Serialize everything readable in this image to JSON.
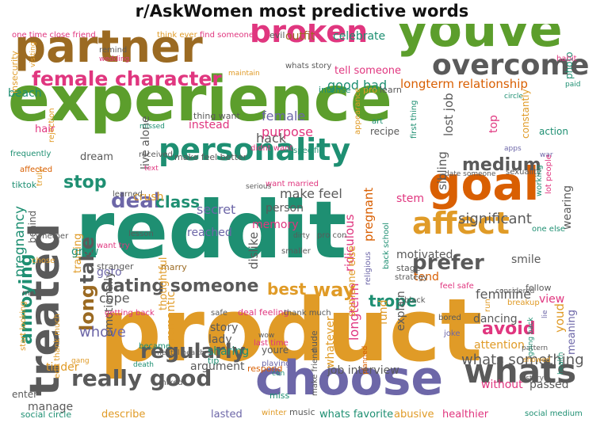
{
  "title": "r/AskWomen most predictive words",
  "palette": {
    "green": "#5c9e2c",
    "orange": "#e09b27",
    "purple": "#6d67a8",
    "teal": "#1e8f72",
    "brown": "#9b6a22",
    "magenta": "#e0367f",
    "gray": "#5a5a5a",
    "red": "#d95f02"
  },
  "words": [
    {
      "text": "experience",
      "color": "green"
    },
    {
      "text": "product",
      "color": "orange"
    },
    {
      "text": "reddit",
      "color": "teal"
    },
    {
      "text": "youve",
      "color": "green"
    },
    {
      "text": "partner",
      "color": "brown"
    },
    {
      "text": "choose",
      "color": "purple"
    },
    {
      "text": "treated",
      "color": "gray"
    },
    {
      "text": "goal",
      "color": "red"
    },
    {
      "text": "broken",
      "color": "magenta"
    },
    {
      "text": "overcome",
      "color": "gray"
    },
    {
      "text": "personality",
      "color": "teal"
    },
    {
      "text": "affect",
      "color": "orange"
    },
    {
      "text": "whats",
      "color": "gray"
    },
    {
      "text": "female character",
      "color": "magenta"
    },
    {
      "text": "really good",
      "color": "gray"
    },
    {
      "text": "take",
      "color": "gray"
    },
    {
      "text": "long",
      "color": "brown"
    },
    {
      "text": "annoying",
      "color": "teal"
    },
    {
      "text": "regularly",
      "color": "gray"
    },
    {
      "text": "prefer",
      "color": "gray"
    },
    {
      "text": "dating someone",
      "color": "gray"
    },
    {
      "text": "deal",
      "color": "purple"
    },
    {
      "text": "stop",
      "color": "teal"
    },
    {
      "text": "medium",
      "color": "gray"
    },
    {
      "text": "avoid",
      "color": "magenta"
    },
    {
      "text": "best",
      "color": "orange"
    },
    {
      "text": "way",
      "color": "orange"
    },
    {
      "text": "whats something",
      "color": "gray"
    },
    {
      "text": "class",
      "color": "teal"
    },
    {
      "text": "significant",
      "color": "gray"
    },
    {
      "text": "good bad",
      "color": "teal"
    },
    {
      "text": "longterm relationship",
      "color": "red"
    },
    {
      "text": "trope",
      "color": "teal"
    },
    {
      "text": "hack",
      "color": "gray"
    },
    {
      "text": "goto",
      "color": "purple"
    },
    {
      "text": "cope",
      "color": "gray"
    },
    {
      "text": "pregnancy",
      "color": "teal"
    },
    {
      "text": "make feel",
      "color": "gray"
    },
    {
      "text": "secret",
      "color": "purple"
    },
    {
      "text": "female",
      "color": "purple"
    },
    {
      "text": "purpose",
      "color": "magenta"
    },
    {
      "text": "instead",
      "color": "magenta"
    },
    {
      "text": "sibling",
      "color": "gray"
    },
    {
      "text": "wearing",
      "color": "gray"
    },
    {
      "text": "lost job",
      "color": "gray"
    },
    {
      "text": "top",
      "color": "magenta"
    },
    {
      "text": "crush",
      "color": "orange"
    },
    {
      "text": "live alone",
      "color": "gray"
    },
    {
      "text": "stem",
      "color": "magenta"
    },
    {
      "text": "person",
      "color": "gray"
    },
    {
      "text": "memory",
      "color": "magenta"
    },
    {
      "text": "pregnant",
      "color": "red"
    },
    {
      "text": "motivated",
      "color": "gray"
    },
    {
      "text": "smile",
      "color": "gray"
    },
    {
      "text": "tend",
      "color": "red"
    },
    {
      "text": "view",
      "color": "magenta"
    },
    {
      "text": "feminine",
      "color": "gray"
    },
    {
      "text": "explain",
      "color": "gray"
    },
    {
      "text": "fund",
      "color": "orange"
    },
    {
      "text": "longterm",
      "color": "magenta"
    },
    {
      "text": "ridiculous",
      "color": "magenta"
    },
    {
      "text": "dislike",
      "color": "gray"
    },
    {
      "text": "romantic",
      "color": "orange"
    },
    {
      "text": "whove",
      "color": "purple"
    },
    {
      "text": "emotionally",
      "color": "gray"
    },
    {
      "text": "sharing",
      "color": "teal"
    },
    {
      "text": "argument",
      "color": "gray"
    },
    {
      "text": "lady",
      "color": "gray"
    },
    {
      "text": "story",
      "color": "gray"
    },
    {
      "text": "job interview",
      "color": "gray"
    },
    {
      "text": "attention",
      "color": "orange"
    },
    {
      "text": "dancing",
      "color": "gray"
    },
    {
      "text": "meaning",
      "color": "purple"
    },
    {
      "text": "youd",
      "color": "orange"
    },
    {
      "text": "without",
      "color": "magenta"
    },
    {
      "text": "passed",
      "color": "gray"
    },
    {
      "text": "tinder",
      "color": "orange"
    },
    {
      "text": "manage",
      "color": "gray"
    },
    {
      "text": "describe",
      "color": "orange"
    },
    {
      "text": "lasted",
      "color": "purple"
    },
    {
      "text": "whats favorite",
      "color": "teal"
    },
    {
      "text": "abusive",
      "color": "orange"
    },
    {
      "text": "healthier",
      "color": "magenta"
    },
    {
      "text": "social circle",
      "color": "teal"
    },
    {
      "text": "social medium",
      "color": "teal"
    },
    {
      "text": "enter",
      "color": "gray"
    },
    {
      "text": "tip",
      "color": "teal"
    },
    {
      "text": "respond",
      "color": "red"
    },
    {
      "text": "marry",
      "color": "brown"
    },
    {
      "text": "training",
      "color": "orange"
    },
    {
      "text": "grew",
      "color": "teal"
    },
    {
      "text": "behind",
      "color": "gray"
    },
    {
      "text": "dream",
      "color": "gray"
    },
    {
      "text": "hair",
      "color": "magenta"
    },
    {
      "text": "beach",
      "color": "teal"
    },
    {
      "text": "insecurity",
      "color": "orange"
    },
    {
      "text": "one time close friend",
      "color": "magenta"
    },
    {
      "text": "think ever",
      "color": "orange"
    },
    {
      "text": "find someone",
      "color": "magenta"
    },
    {
      "text": "evil",
      "color": "gray"
    },
    {
      "text": "outfit",
      "color": "brown"
    },
    {
      "text": "celebrate",
      "color": "teal"
    },
    {
      "text": "remind",
      "color": "gray"
    },
    {
      "text": "wedding",
      "color": "magenta"
    },
    {
      "text": "tell someone",
      "color": "magenta"
    },
    {
      "text": "whats story",
      "color": "gray"
    },
    {
      "text": "maintain",
      "color": "orange"
    },
    {
      "text": "intense",
      "color": "teal"
    },
    {
      "text": "pro",
      "color": "orange"
    },
    {
      "text": "learn",
      "color": "gray"
    },
    {
      "text": "photo",
      "color": "teal"
    },
    {
      "text": "habit",
      "color": "magenta"
    },
    {
      "text": "paid",
      "color": "teal"
    },
    {
      "text": "circle",
      "color": "teal"
    },
    {
      "text": "action",
      "color": "teal"
    },
    {
      "text": "constantly",
      "color": "orange"
    },
    {
      "text": "war",
      "color": "purple"
    },
    {
      "text": "apps",
      "color": "purple"
    },
    {
      "text": "rejection",
      "color": "orange"
    },
    {
      "text": "visiting",
      "color": "orange"
    },
    {
      "text": "missed",
      "color": "teal"
    },
    {
      "text": "thing want",
      "color": "gray"
    },
    {
      "text": "didnt want",
      "color": "magenta"
    },
    {
      "text": "art",
      "color": "teal"
    },
    {
      "text": "recipe",
      "color": "gray"
    },
    {
      "text": "appearance",
      "color": "orange"
    },
    {
      "text": "first thing",
      "color": "teal"
    },
    {
      "text": "frequently",
      "color": "teal"
    },
    {
      "text": "received",
      "color": "gray"
    },
    {
      "text": "make feel better",
      "color": "gray"
    },
    {
      "text": "specific",
      "color": "teal"
    },
    {
      "text": "sexuality",
      "color": "gray"
    },
    {
      "text": "date someone",
      "color": "gray"
    },
    {
      "text": "working",
      "color": "teal"
    },
    {
      "text": "lot people",
      "color": "magenta"
    },
    {
      "text": "one else",
      "color": "teal"
    },
    {
      "text": "truly",
      "color": "orange"
    },
    {
      "text": "affected",
      "color": "red"
    },
    {
      "text": "text",
      "color": "magenta"
    },
    {
      "text": "tiktok",
      "color": "teal"
    },
    {
      "text": "learned",
      "color": "gray"
    },
    {
      "text": "want married",
      "color": "magenta"
    },
    {
      "text": "serious",
      "color": "gray"
    },
    {
      "text": "reached",
      "color": "purple"
    },
    {
      "text": "lesson",
      "color": "gray"
    },
    {
      "text": "dirty",
      "color": "gray"
    },
    {
      "text": "pro con",
      "color": "gray"
    },
    {
      "text": "smaller",
      "color": "gray"
    },
    {
      "text": "someone else",
      "color": "orange"
    },
    {
      "text": "religious",
      "color": "purple"
    },
    {
      "text": "back school",
      "color": "teal"
    },
    {
      "text": "strategy",
      "color": "gray"
    },
    {
      "text": "stage",
      "color": "gray"
    },
    {
      "text": "feel safe",
      "color": "magenta"
    },
    {
      "text": "considered",
      "color": "gray"
    },
    {
      "text": "fellow",
      "color": "gray"
    },
    {
      "text": "want try",
      "color": "magenta"
    },
    {
      "text": "stranger",
      "color": "gray"
    },
    {
      "text": "thoughtful",
      "color": "orange"
    },
    {
      "text": "getting back",
      "color": "magenta"
    },
    {
      "text": "safe",
      "color": "gray"
    },
    {
      "text": "deal feeling",
      "color": "magenta"
    },
    {
      "text": "thank much",
      "color": "gray"
    },
    {
      "text": "breakup",
      "color": "orange"
    },
    {
      "text": "black",
      "color": "gray"
    },
    {
      "text": "bored",
      "color": "gray"
    },
    {
      "text": "joke",
      "color": "purple"
    },
    {
      "text": "run",
      "color": "orange"
    },
    {
      "text": "lie",
      "color": "purple"
    },
    {
      "text": "chose",
      "color": "orange"
    },
    {
      "text": "mother",
      "color": "gray"
    },
    {
      "text": "whether",
      "color": "gray"
    },
    {
      "text": "start looking",
      "color": "orange"
    },
    {
      "text": "became",
      "color": "teal"
    },
    {
      "text": "mental health",
      "color": "gray"
    },
    {
      "text": "death",
      "color": "teal"
    },
    {
      "text": "last time",
      "color": "magenta"
    },
    {
      "text": "wow",
      "color": "gray"
    },
    {
      "text": "youre",
      "color": "gray"
    },
    {
      "text": "playing",
      "color": "purple"
    },
    {
      "text": "con",
      "color": "teal"
    },
    {
      "text": "nude",
      "color": "gray"
    },
    {
      "text": "whatever",
      "color": "orange"
    },
    {
      "text": "planned",
      "color": "red"
    },
    {
      "text": "pattern",
      "color": "gray"
    },
    {
      "text": "going back",
      "color": "teal"
    },
    {
      "text": "health",
      "color": "teal"
    },
    {
      "text": "showed",
      "color": "orange"
    },
    {
      "text": "history",
      "color": "gray"
    },
    {
      "text": "edit thank much",
      "color": "orange"
    },
    {
      "text": "gang",
      "color": "orange"
    },
    {
      "text": "mixed",
      "color": "gray"
    },
    {
      "text": "miss",
      "color": "teal"
    },
    {
      "text": "make friend",
      "color": "gray"
    },
    {
      "text": "winter",
      "color": "orange"
    },
    {
      "text": "music",
      "color": "gray"
    }
  ]
}
